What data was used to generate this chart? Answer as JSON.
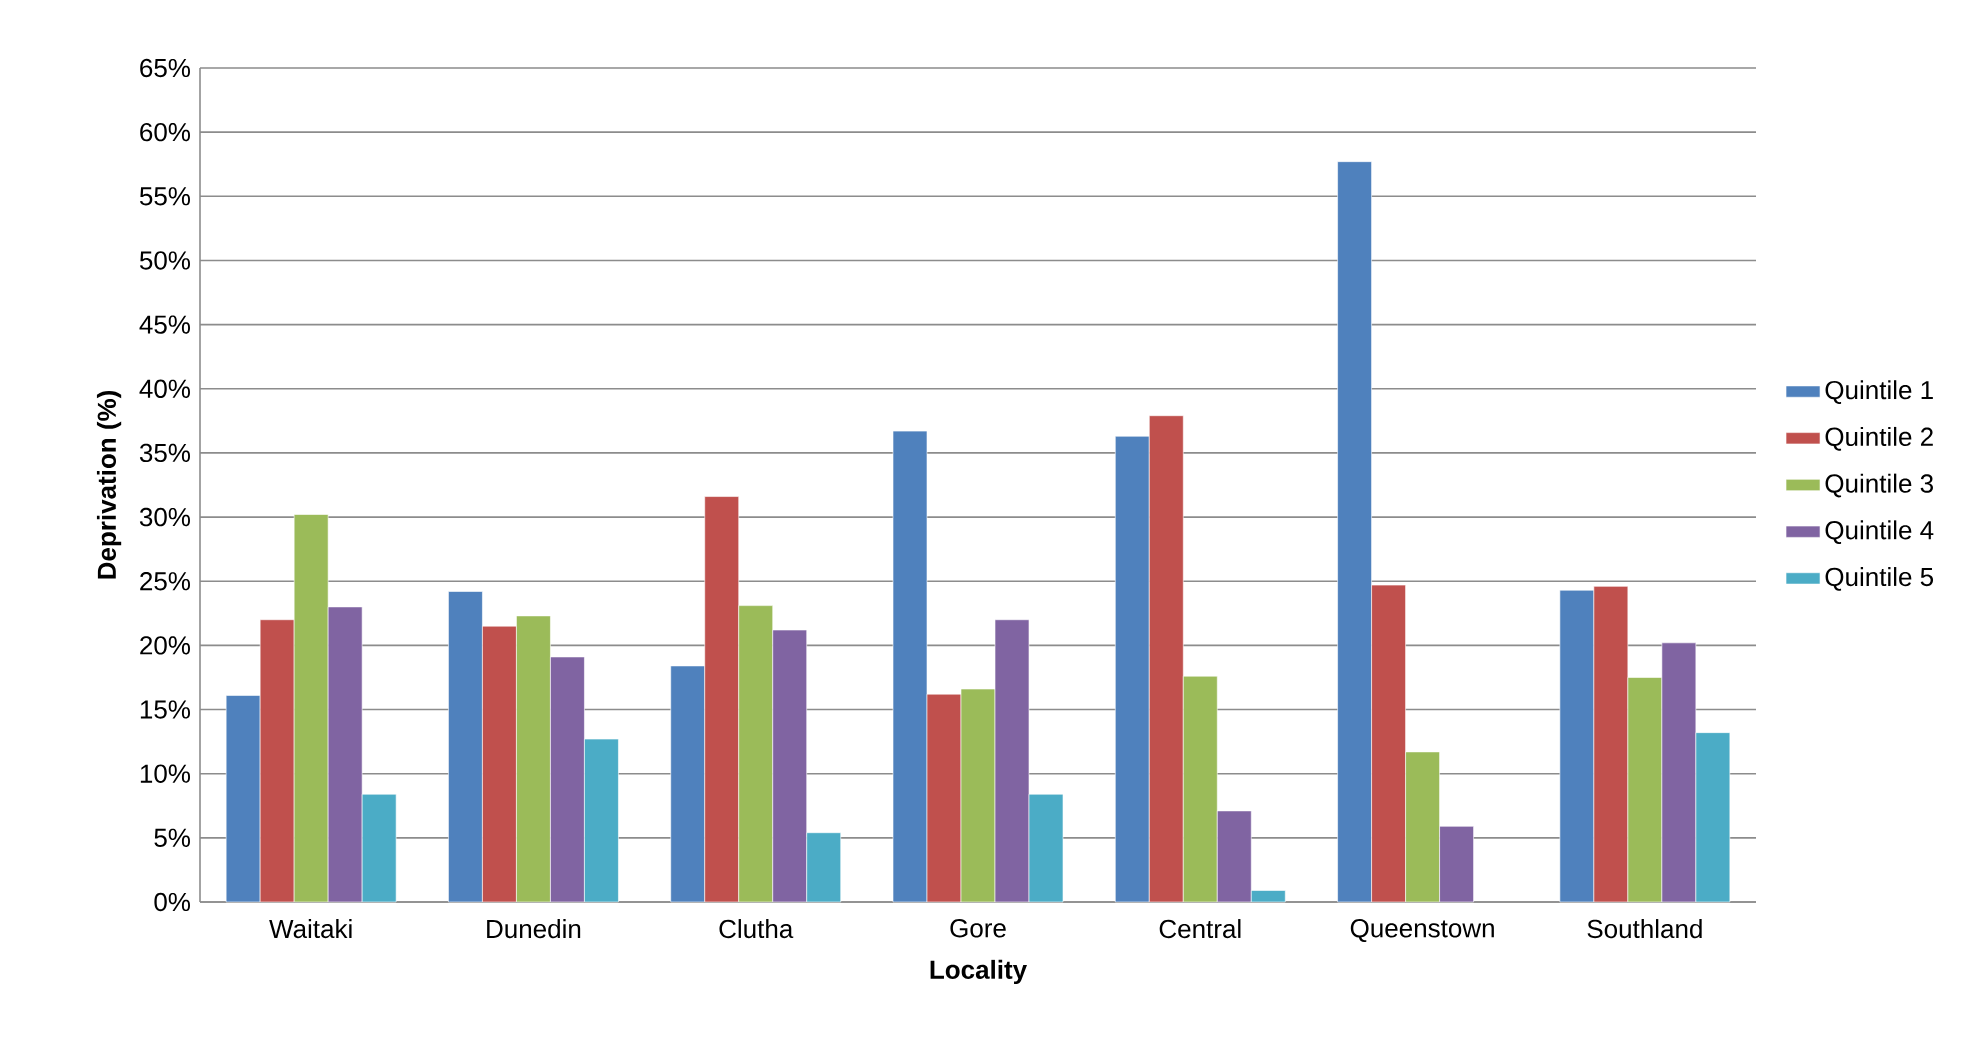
{
  "chart_data": {
    "type": "bar",
    "xlabel": "Locality",
    "ylabel": "Deprivation (%)",
    "categories": [
      "Waitaki",
      "Dunedin",
      "Clutha",
      "Gore",
      "Central",
      "Queenstown",
      "Southland"
    ],
    "series": [
      {
        "name": "Quintile 1",
        "color": "#4f81bd",
        "values": [
          16.1,
          24.2,
          18.4,
          36.7,
          36.3,
          57.7,
          24.3
        ]
      },
      {
        "name": "Quintile 2",
        "color": "#c0504d",
        "values": [
          22.0,
          21.5,
          31.6,
          16.2,
          37.9,
          24.7,
          24.6
        ]
      },
      {
        "name": "Quintile 3",
        "color": "#9bbb59",
        "values": [
          30.2,
          22.3,
          23.1,
          16.6,
          17.6,
          11.7,
          17.5
        ]
      },
      {
        "name": "Quintile 4",
        "color": "#8064a2",
        "values": [
          23.0,
          19.1,
          21.2,
          22.0,
          7.1,
          5.9,
          20.2
        ]
      },
      {
        "name": "Quintile 5",
        "color": "#4bacc6",
        "values": [
          8.4,
          12.7,
          5.4,
          8.4,
          0.9,
          null,
          13.2
        ]
      }
    ],
    "ylim": [
      0,
      65
    ],
    "yticks": [
      {
        "value": 0,
        "label": "0%"
      },
      {
        "value": 5,
        "label": "5%"
      },
      {
        "value": 10,
        "label": "10%"
      },
      {
        "value": 15,
        "label": "15%"
      },
      {
        "value": 20,
        "label": "20%"
      },
      {
        "value": 25,
        "label": "25%"
      },
      {
        "value": 30,
        "label": "30%"
      },
      {
        "value": 35,
        "label": "35%"
      },
      {
        "value": 40,
        "label": "40%"
      },
      {
        "value": 45,
        "label": "45%"
      },
      {
        "value": 50,
        "label": "50%"
      },
      {
        "value": 55,
        "label": "55%"
      },
      {
        "value": 60,
        "label": "60%"
      },
      {
        "value": 65,
        "label": "65%"
      }
    ],
    "grid": "y",
    "legend": "right"
  }
}
